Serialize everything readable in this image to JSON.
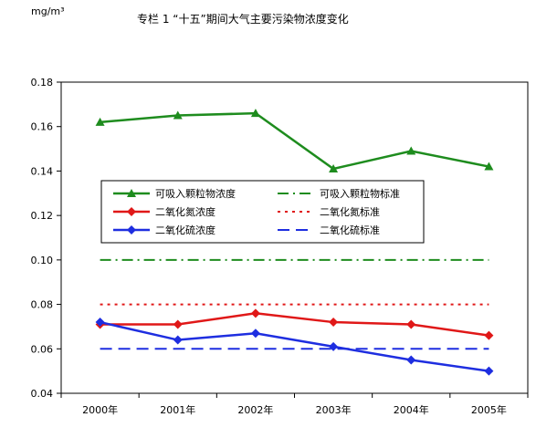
{
  "chart_data": {
    "type": "line",
    "title": "专栏 1 “十五”期间大气主要污染物浓度变化",
    "unit_label": "mg/m³",
    "categories": [
      "2000年",
      "2001年",
      "2002年",
      "2003年",
      "2004年",
      "2005年"
    ],
    "ylim": [
      0.04,
      0.18
    ],
    "yticks": [
      "0.04",
      "0.06",
      "0.08",
      "0.10",
      "0.12",
      "0.14",
      "0.16",
      "0.18"
    ],
    "grid": false,
    "legend_position": "center-left",
    "series": [
      {
        "name": "可吸入颗粒物浓度",
        "values": [
          0.162,
          0.165,
          0.166,
          0.141,
          0.149,
          0.142
        ],
        "color": "#1e8c1e",
        "marker": "triangle",
        "line": "solid"
      },
      {
        "name": "二氧化氮浓度",
        "values": [
          0.071,
          0.071,
          0.076,
          0.072,
          0.071,
          0.066
        ],
        "color": "#e01818",
        "marker": "diamond",
        "line": "solid"
      },
      {
        "name": "二氧化硫浓度",
        "values": [
          0.072,
          0.064,
          0.067,
          0.061,
          0.055,
          0.05
        ],
        "color": "#1e2ee0",
        "marker": "diamond",
        "line": "solid"
      },
      {
        "name": "可吸入颗粒物标准",
        "values": [
          0.1,
          0.1,
          0.1,
          0.1,
          0.1,
          0.1
        ],
        "color": "#1e8c1e",
        "marker": "none",
        "line": "dashdot"
      },
      {
        "name": "二氧化氮标准",
        "values": [
          0.08,
          0.08,
          0.08,
          0.08,
          0.08,
          0.08
        ],
        "color": "#e01818",
        "marker": "none",
        "line": "dotted"
      },
      {
        "name": "二氧化硫标准",
        "values": [
          0.06,
          0.06,
          0.06,
          0.06,
          0.06,
          0.06
        ],
        "color": "#1e2ee0",
        "marker": "none",
        "line": "dashed"
      }
    ]
  }
}
